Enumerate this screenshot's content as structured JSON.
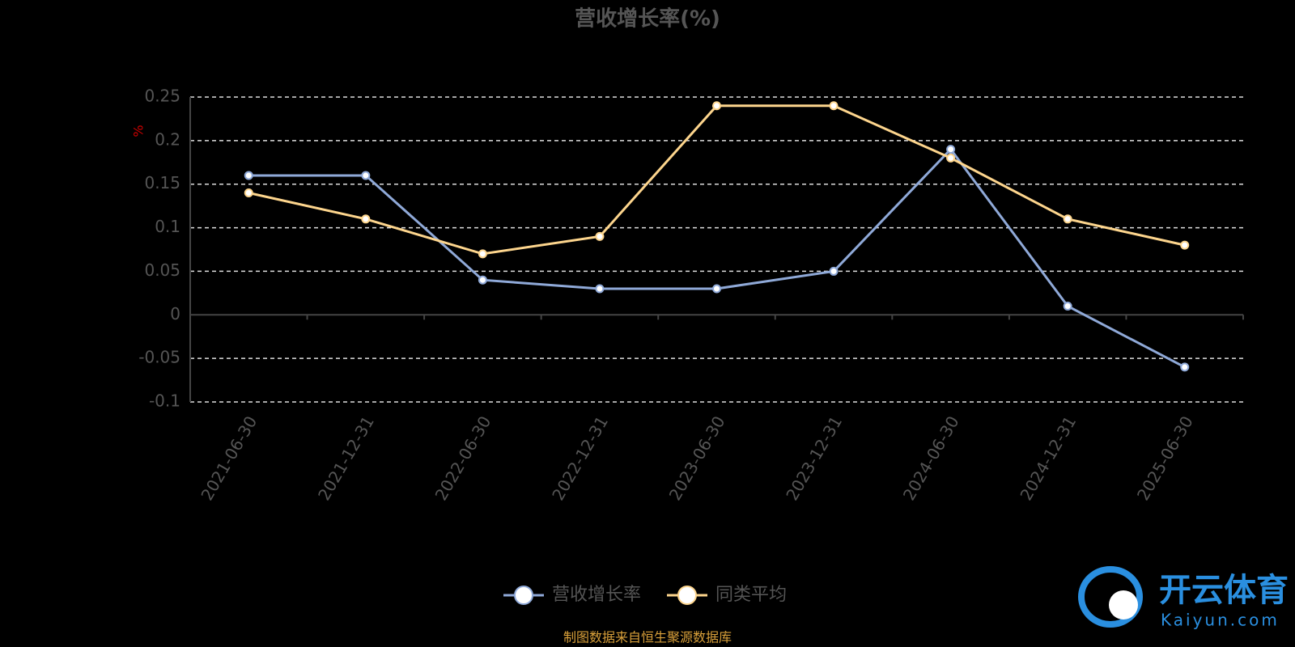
{
  "chart_data": {
    "type": "line",
    "title": "营收增长率(%)",
    "y_label": "%",
    "categories": [
      "2021-06-30",
      "2021-12-31",
      "2022-06-30",
      "2022-12-31",
      "2023-06-30",
      "2023-12-31",
      "2024-06-30",
      "2024-12-31",
      "2025-06-30"
    ],
    "series": [
      {
        "name": "营收增长率",
        "color": "#8fa9d8",
        "values": [
          0.16,
          0.16,
          0.04,
          0.03,
          0.03,
          0.05,
          0.19,
          0.01,
          -0.06
        ]
      },
      {
        "name": "同类平均",
        "color": "#fdd58d",
        "values": [
          0.14,
          0.11,
          0.07,
          0.09,
          0.24,
          0.24,
          0.18,
          0.11,
          0.08
        ]
      }
    ],
    "ylim": [
      -0.1,
      0.25
    ],
    "yticks": [
      -0.1,
      -0.05,
      0,
      0.05,
      0.1,
      0.15,
      0.2,
      0.25
    ],
    "grid": true,
    "source": "制图数据来自恒生聚源数据库",
    "watermark": {
      "name": "开云体育",
      "site": "Kaiyun.com"
    }
  }
}
